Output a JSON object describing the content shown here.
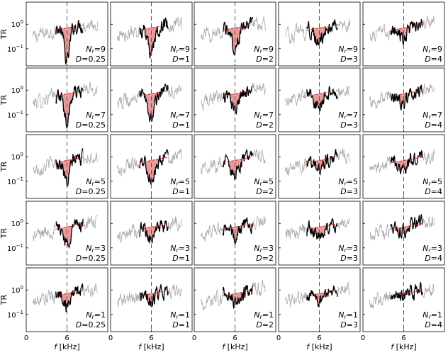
{
  "figure": {
    "xlabel": "f [kHz]",
    "ylabel": "TR",
    "rows_nr": [
      "9",
      "7",
      "5",
      "3",
      "1"
    ],
    "cols_d": [
      "0.25",
      "1",
      "2",
      "3",
      "4"
    ],
    "panel_label_nr_prefix": "N",
    "panel_label_nr_sub": "r",
    "panel_label_d_prefix": "D",
    "colors": {
      "full_trace": "#a8a8a8",
      "band_trace": "#000000",
      "fit_line": "#d62728",
      "fill": "#e58a8a",
      "dashed_line": "#555555"
    }
  },
  "chart_data": {
    "type": "line",
    "layout": "5x5 grid of panels; rows N_r = 9,7,5,3,1; columns D = 0.25,1,2,3,4",
    "xlabel": "f [kHz]",
    "ylabel": "TR",
    "x_ticks": [
      "0",
      "6"
    ],
    "y_ticks": [
      "10^0",
      "10^-1"
    ],
    "y_scale": "log",
    "xlim": [
      0,
      12
    ],
    "ylim": [
      0.02,
      8
    ],
    "reference_frequency_khz": 6,
    "series": [
      {
        "name": "",
        "description": "full-band TR curve",
        "color": "#a8a8a8"
      },
      {
        "name": "",
        "description": "TR curve within analysis band (approx. 4–8.5 kHz)",
        "color": "#000000"
      },
      {
        "name": "",
        "description": "linear trend fit",
        "color": "#d62728"
      }
    ],
    "notes": "Shaded red region between trend line and TR curve dip near 6 kHz; dip shrinks as D increases and as N_r decreases."
  }
}
